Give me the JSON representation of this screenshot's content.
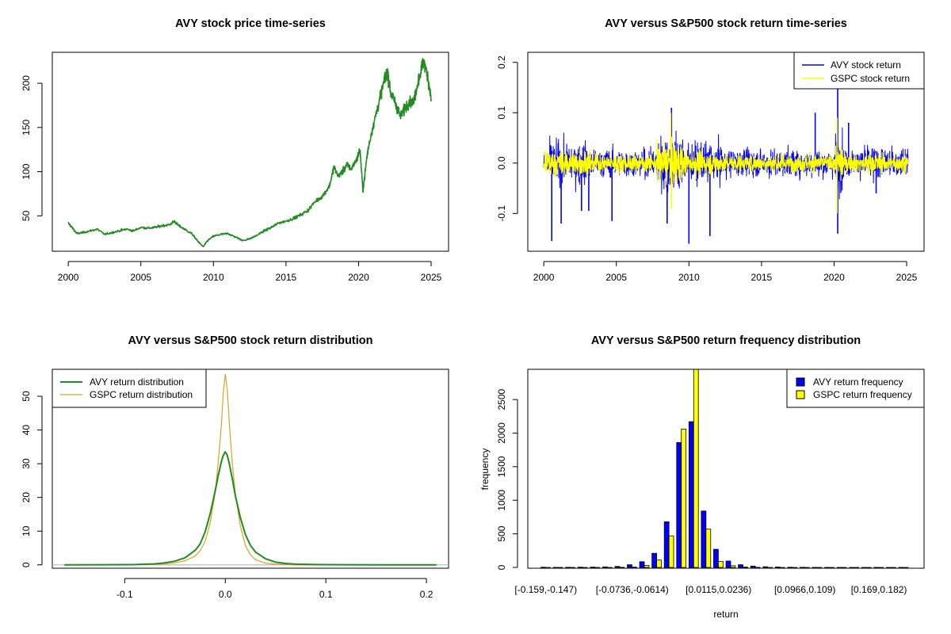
{
  "colors": {
    "price": "#228B22",
    "avy_return": "#0000FF",
    "gspc_return": "#FFFF00",
    "avy_density": "#228B22",
    "gspc_density": "#DAA520",
    "avy_hist": "#0000FF",
    "gspc_hist": "#FFFF00"
  },
  "chart_data": [
    {
      "type": "line",
      "title": "AVY stock price time-series",
      "xlabel": "",
      "ylabel": "",
      "xlim": [
        1998.9,
        2026.2
      ],
      "ylim": [
        10,
        235
      ],
      "xticks": [
        2000,
        2005,
        2010,
        2015,
        2020,
        2025
      ],
      "yticks": [
        50,
        100,
        150,
        200
      ],
      "x": [
        2000.0,
        2000.3,
        2000.6,
        2001.0,
        2001.5,
        2002.0,
        2002.5,
        2003.0,
        2003.5,
        2004.0,
        2004.5,
        2005.0,
        2005.5,
        2006.0,
        2006.5,
        2007.0,
        2007.3,
        2007.6,
        2008.0,
        2008.5,
        2008.8,
        2009.0,
        2009.3,
        2009.6,
        2010.0,
        2010.5,
        2011.0,
        2011.4,
        2011.8,
        2012.0,
        2012.5,
        2013.0,
        2013.5,
        2014.0,
        2014.5,
        2015.0,
        2015.5,
        2016.0,
        2016.5,
        2017.0,
        2017.5,
        2018.0,
        2018.3,
        2018.6,
        2018.9,
        2019.2,
        2019.5,
        2019.9,
        2020.1,
        2020.3,
        2020.6,
        2020.9,
        2021.2,
        2021.5,
        2021.8,
        2022.0,
        2022.2,
        2022.4,
        2022.6,
        2022.9,
        2023.2,
        2023.5,
        2023.8,
        2024.0,
        2024.3,
        2024.5,
        2024.8,
        2025.0
      ],
      "series": [
        {
          "values": [
            42,
            36,
            30,
            31,
            33,
            35,
            29,
            31,
            33,
            35,
            33,
            37,
            36,
            37,
            39,
            40,
            44,
            39,
            35,
            30,
            24,
            20,
            15,
            22,
            27,
            29,
            30,
            27,
            24,
            22,
            24,
            28,
            33,
            37,
            42,
            44,
            47,
            51,
            56,
            66,
            72,
            84,
            105,
            95,
            100,
            108,
            103,
            115,
            125,
            78,
            120,
            145,
            165,
            185,
            205,
            213,
            190,
            183,
            175,
            162,
            172,
            180,
            178,
            195,
            215,
            225,
            205,
            182
          ],
          "color": "#228B22"
        }
      ]
    },
    {
      "type": "line",
      "title": "AVY versus S&P500 stock return time-series",
      "xlabel": "",
      "ylabel": "",
      "xlim": [
        1998.9,
        2026.2
      ],
      "ylim": [
        -0.175,
        0.22
      ],
      "xticks": [
        2000,
        2005,
        2010,
        2015,
        2020,
        2025
      ],
      "yticks": [
        "-0.1",
        "0.0",
        "0.1",
        "0.2"
      ],
      "legend": {
        "position": "top-right"
      },
      "series": [
        {
          "name": "AVY stock return",
          "color": "#0000FF",
          "typical_abs_return": 0.018,
          "spikes": [
            {
              "x": 2000.55,
              "y": -0.155
            },
            {
              "x": 2001.2,
              "y": -0.12
            },
            {
              "x": 2002.6,
              "y": -0.095
            },
            {
              "x": 2003.1,
              "y": -0.095
            },
            {
              "x": 2004.7,
              "y": -0.115
            },
            {
              "x": 2008.5,
              "y": -0.12
            },
            {
              "x": 2008.8,
              "y": 0.11
            },
            {
              "x": 2010.0,
              "y": -0.16
            },
            {
              "x": 2011.45,
              "y": -0.145
            },
            {
              "x": 2018.7,
              "y": 0.1
            },
            {
              "x": 2020.25,
              "y": -0.14
            },
            {
              "x": 2020.25,
              "y": 0.15
            },
            {
              "x": 2021.0,
              "y": 0.08
            },
            {
              "x": 2022.9,
              "y": -0.06
            }
          ]
        },
        {
          "name": "GSPC stock return",
          "color": "#FFFF00",
          "typical_abs_return": 0.012,
          "spikes": [
            {
              "x": 2008.75,
              "y": 0.1
            },
            {
              "x": 2008.8,
              "y": -0.09
            },
            {
              "x": 2020.2,
              "y": 0.09
            },
            {
              "x": 2020.2,
              "y": -0.1
            }
          ]
        }
      ]
    },
    {
      "type": "line",
      "title": "AVY versus S&P500 stock return distribution",
      "xlabel": "",
      "ylabel": "",
      "xlim": [
        -0.172,
        0.222
      ],
      "ylim": [
        -1,
        58
      ],
      "xticks": [
        "-0.1",
        "0.0",
        "0.1",
        "0.2"
      ],
      "yticks": [
        0,
        10,
        20,
        30,
        40,
        50
      ],
      "legend": {
        "position": "top-left"
      },
      "x": [
        -0.16,
        -0.12,
        -0.09,
        -0.07,
        -0.06,
        -0.05,
        -0.04,
        -0.03,
        -0.025,
        -0.02,
        -0.015,
        -0.01,
        -0.007,
        -0.004,
        -0.002,
        0.0,
        0.002,
        0.004,
        0.007,
        0.01,
        0.015,
        0.02,
        0.025,
        0.03,
        0.04,
        0.05,
        0.06,
        0.07,
        0.09,
        0.12,
        0.16,
        0.21
      ],
      "series": [
        {
          "name": "AVY return distribution",
          "color": "#228B22",
          "values": [
            0,
            0.02,
            0.1,
            0.3,
            0.6,
            1.1,
            2.1,
            4.3,
            6.2,
            9.8,
            15.2,
            22.0,
            26.5,
            30.5,
            32.5,
            33.5,
            32.5,
            30.0,
            25.5,
            20.5,
            14.0,
            9.0,
            5.8,
            3.8,
            1.8,
            0.8,
            0.4,
            0.2,
            0.08,
            0.02,
            0.01,
            0
          ]
        },
        {
          "name": "GSPC return distribution",
          "color": "#DAA520",
          "values": [
            0,
            0.01,
            0.05,
            0.15,
            0.3,
            0.6,
            1.2,
            2.6,
            4.2,
            7.0,
            12.5,
            21.5,
            30.5,
            41.0,
            51.0,
            56.5,
            52.0,
            42.0,
            30.0,
            21.0,
            11.5,
            5.8,
            3.0,
            1.5,
            0.5,
            0.2,
            0.08,
            0.03,
            0.01,
            0,
            0,
            0
          ]
        }
      ]
    },
    {
      "type": "bar",
      "title": "AVY versus S&P500 return frequency distribution",
      "xlabel": "return",
      "ylabel": "frequency",
      "ylim": [
        0,
        2950
      ],
      "yticks": [
        0,
        500,
        1000,
        1500,
        2000,
        2500
      ],
      "legend": {
        "position": "top-right"
      },
      "tick_labels": [
        "[-0.159,-0.147)",
        "[-0.0736,-0.0614)",
        "[0.0115,0.0236)",
        "[0.0966,0.109)",
        "[0.169,0.182)"
      ],
      "tick_label_indices": [
        0,
        7,
        14,
        21,
        27
      ],
      "series": [
        {
          "name": "AVY return frequency",
          "color": "#0000FF",
          "values": [
            3,
            1,
            2,
            4,
            5,
            8,
            15,
            40,
            85,
            210,
            680,
            1860,
            2170,
            840,
            270,
            95,
            40,
            20,
            10,
            6,
            3,
            2,
            1,
            1,
            1,
            0,
            0,
            1,
            0,
            1
          ]
        },
        {
          "name": "GSPC return frequency",
          "color": "#FFFF00",
          "values": [
            0,
            0,
            0,
            0,
            0,
            0,
            2,
            5,
            30,
            110,
            470,
            2060,
            3050,
            570,
            90,
            25,
            5,
            2,
            0,
            0,
            0,
            0,
            0,
            0,
            0,
            0,
            0,
            0,
            0,
            0
          ]
        }
      ]
    }
  ]
}
